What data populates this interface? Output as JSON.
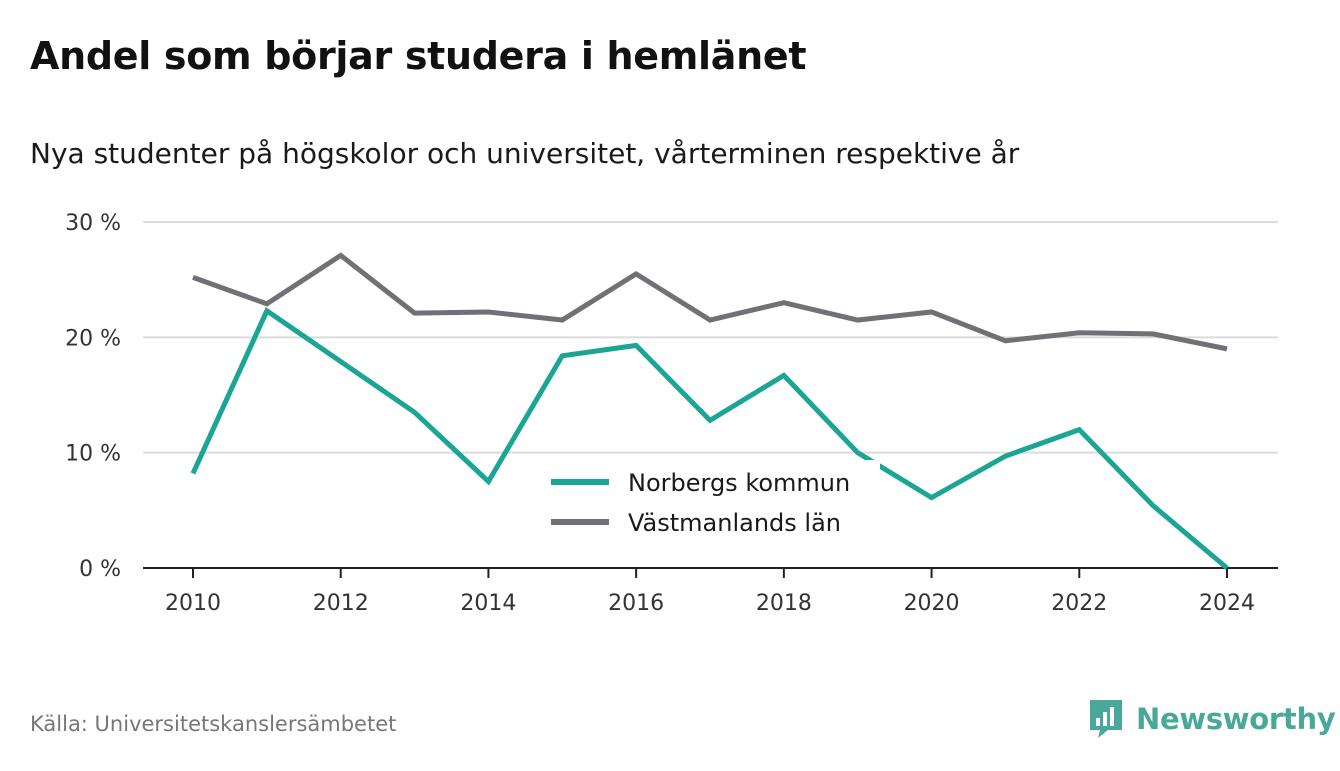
{
  "header": {
    "title": "Andel som börjar studera i hemlänet",
    "subtitle": "Nya studenter på högskolor och universitet, vårterminen respektive år"
  },
  "footer": {
    "source": "Källa: Universitetskanslersämbetet",
    "brand": "Newsworthy",
    "brand_color": "#4aa89a"
  },
  "chart_data": {
    "type": "line",
    "title": "Andel som börjar studera i hemlänet",
    "subtitle": "Nya studenter på högskolor och universitet, vårterminen respektive år",
    "x": [
      2010,
      2011,
      2012,
      2013,
      2014,
      2015,
      2016,
      2017,
      2018,
      2019,
      2020,
      2021,
      2022,
      2023,
      2024
    ],
    "x_ticks": [
      2010,
      2012,
      2014,
      2016,
      2018,
      2020,
      2022,
      2024
    ],
    "y_ticks": [
      0,
      10,
      20,
      30
    ],
    "y_tick_labels": [
      "0 %",
      "10 %",
      "20 %",
      "30 %"
    ],
    "ylim": [
      0,
      30
    ],
    "grid": true,
    "legend_position": "bottom-center",
    "series": [
      {
        "name": "Norbergs kommun",
        "color": "#1aa594",
        "values": [
          8.2,
          22.3,
          17.9,
          13.5,
          7.5,
          18.4,
          19.3,
          12.8,
          16.7,
          10.0,
          6.1,
          9.7,
          12.0,
          5.4,
          0.0
        ]
      },
      {
        "name": "Västmanlands län",
        "color": "#707077",
        "values": [
          25.2,
          22.9,
          27.1,
          22.1,
          22.2,
          21.5,
          25.5,
          21.5,
          23.0,
          21.5,
          22.2,
          19.7,
          20.4,
          20.3,
          19.0
        ]
      }
    ]
  }
}
